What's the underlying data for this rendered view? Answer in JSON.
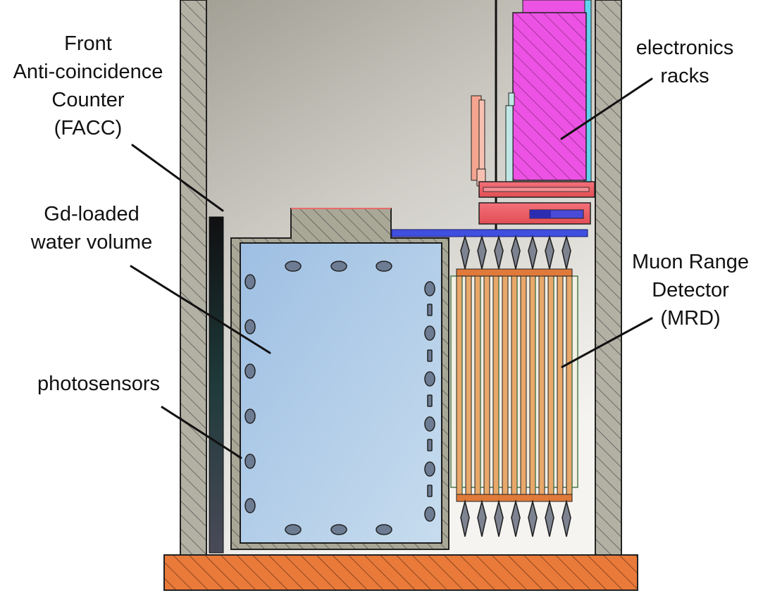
{
  "labels": {
    "facc": [
      "Front",
      "Anti-coincidence",
      "Counter",
      "(FACC)"
    ],
    "water": [
      "Gd-loaded",
      "water volume"
    ],
    "photosensors": [
      "photosensors"
    ],
    "electronics": [
      "electronics",
      "racks"
    ],
    "mrd": [
      "Muon Range",
      "Detector",
      "(MRD)"
    ]
  },
  "colors": {
    "wall": "#b3b1a4",
    "tank_shell": "#a9a796",
    "water": "#a7c6e6",
    "facc_panel": "#1c1c22",
    "racks": "#ee4fe6",
    "platform": "#f0636a",
    "floor": "#ec7a3a",
    "mrd_scint": "#e8a86a"
  }
}
